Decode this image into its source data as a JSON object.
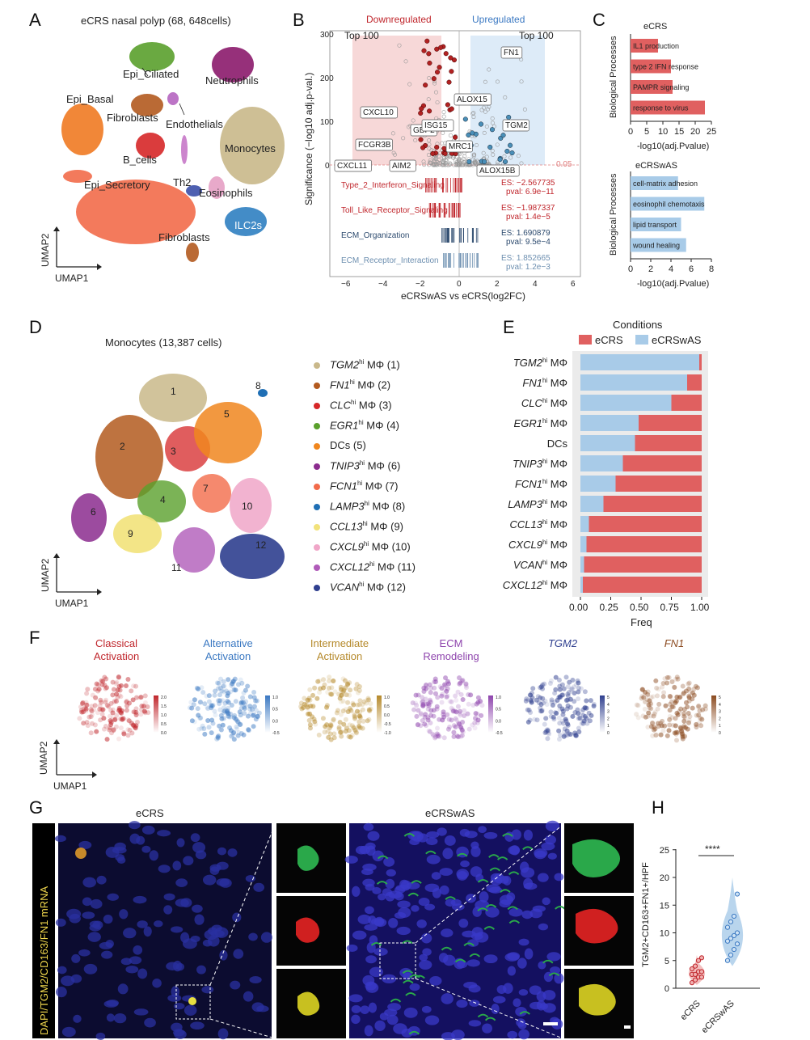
{
  "panels": [
    "A",
    "B",
    "C",
    "D",
    "E",
    "F",
    "G",
    "H"
  ],
  "A": {
    "title": "eCRS nasal polyp (68, 648cells)",
    "clusters": [
      {
        "label": "Epi_Ciliated",
        "color": "#5aa02c"
      },
      {
        "label": "Neutrophils",
        "color": "#8b1a6b"
      },
      {
        "label": "Epi_Basal",
        "color": "#f07a22"
      },
      {
        "label": "Fibroblasts",
        "color": "#b35a1f"
      },
      {
        "label": "Endothelials",
        "color": "#b565c0"
      },
      {
        "label": "Monocytes",
        "color": "#c9b88a"
      },
      {
        "label": "B_cells",
        "color": "#d62728"
      },
      {
        "label": "Epi_Secretory",
        "color": "#f26b4a"
      },
      {
        "label": "Th2",
        "color": "#c678c8"
      },
      {
        "label": "Eosinophils",
        "color": "#e6a0c4"
      },
      {
        "label": "ILC2s",
        "color": "#2f7fc1"
      },
      {
        "label": "Fibroblasts",
        "color": "#b35a1f"
      }
    ],
    "xlabel": "UMAP1",
    "ylabel": "UMAP2"
  },
  "B": {
    "xlabel": "eCRSwAS vs eCRS(log2FC)",
    "ylabel": "Significance (−log10 adj.p-val.)",
    "down_label": "Downregulated",
    "up_label": "Upregulated",
    "top_left": "Top 100",
    "top_right": "Top 100",
    "threshold": "0.05",
    "genes": [
      "FN1",
      "ALOX15",
      "GBP2",
      "CXCL10",
      "ISG15",
      "TGM2",
      "FCGR3B",
      "MRC1",
      "CXCL11",
      "AIM2",
      "ALOX15B"
    ],
    "gsea": [
      {
        "name": "Type_2_Interferon_Signaling",
        "es": "ES: −2.567735",
        "pval": "pval: 6.9e−11",
        "color": "#c0262c"
      },
      {
        "name": "Toll_Like_Receptor_Signaling",
        "es": "ES: −1.987337",
        "pval": "pval: 1.4e−5",
        "color": "#c0262c"
      },
      {
        "name": "ECM_Organization",
        "es": "ES: 1.690879",
        "pval": "pval: 9.5e−4",
        "color": "#2c4a6e"
      },
      {
        "name": "ECM_Receptor_Interaction",
        "es": "ES: 1.852665",
        "pval": "pval: 1.2e−3",
        "color": "#6d8fb0"
      }
    ]
  },
  "C": {
    "ylabel": "Biological Processes",
    "xlabel": "-log10(adj.Pvalue)",
    "top_title": "eCRS",
    "bottom_title": "eCRSwAS",
    "top_bars": [
      {
        "label": "IL1 production",
        "value": 8.5
      },
      {
        "label": "type 2 IFN response",
        "value": 12.5
      },
      {
        "label": "PAMPR signaling",
        "value": 13
      },
      {
        "label": "response to virus",
        "value": 23
      }
    ],
    "top_ticks": [
      "0",
      "5",
      "10",
      "15",
      "20",
      "25"
    ],
    "bottom_bars": [
      {
        "label": "cell-matrix adhesion",
        "value": 4.7
      },
      {
        "label": "eosinophil chemotaxis",
        "value": 7.3
      },
      {
        "label": "lipid transport",
        "value": 5
      },
      {
        "label": "wound healing",
        "value": 5.5
      }
    ],
    "bottom_ticks": [
      "0",
      "2",
      "4",
      "6",
      "8"
    ]
  },
  "D": {
    "title": "Monocytes (13,387 cells)",
    "xlabel": "UMAP1",
    "ylabel": "UMAP2",
    "legend": [
      {
        "gene": "TGM2",
        "sup": "hi",
        "suffix": " MΦ (1)",
        "color": "#c9b88a",
        "num": "1"
      },
      {
        "gene": "FN1",
        "sup": "hi",
        "suffix": " MΦ (2)",
        "color": "#b35a1f",
        "num": "2"
      },
      {
        "gene": "CLC",
        "sup": "hi",
        "suffix": " MΦ (3)",
        "color": "#d62728",
        "num": "3"
      },
      {
        "gene": "EGR1",
        "sup": "hi",
        "suffix": " MΦ (4)",
        "color": "#5aa02c",
        "num": "4"
      },
      {
        "gene": "",
        "sup": "",
        "suffix": "DCs (5)",
        "color": "#f0861e",
        "num": "5"
      },
      {
        "gene": "TNIP3",
        "sup": "hi",
        "suffix": " MΦ (6)",
        "color": "#8b2c8e",
        "num": "6"
      },
      {
        "gene": "FCN1",
        "sup": "hi",
        "suffix": " MΦ (7)",
        "color": "#f26b4a",
        "num": "7"
      },
      {
        "gene": "LAMP3",
        "sup": "hi",
        "suffix": " MΦ (8)",
        "color": "#1f6fb5",
        "num": "8"
      },
      {
        "gene": "CCL13",
        "sup": "hi",
        "suffix": " MΦ (9)",
        "color": "#f2e27a",
        "num": "9"
      },
      {
        "gene": "CXCL9",
        "sup": "hi",
        "suffix": " MΦ (10)",
        "color": "#f0a6c8",
        "num": "10"
      },
      {
        "gene": "CXCL12",
        "sup": "hi",
        "suffix": " MΦ (11)",
        "color": "#b05bb9",
        "num": "11"
      },
      {
        "gene": "VCAN",
        "sup": "hi",
        "suffix": " MΦ (12)",
        "color": "#2f3f8f",
        "num": "12"
      }
    ]
  },
  "E": {
    "legend_title": "Conditions",
    "legend": [
      {
        "name": "eCRS",
        "color": "#e06060"
      },
      {
        "name": "eCRSwAS",
        "color": "#a8cbe8"
      }
    ],
    "xlabel": "Freq",
    "ticks": [
      "0.00",
      "0.25",
      "0.50",
      "0.75",
      "1.00"
    ],
    "rows": [
      {
        "gene": "TGM2",
        "sup": "hi",
        "suffix": " MΦ",
        "ecrswas": 0.98
      },
      {
        "gene": "FN1",
        "sup": "hi",
        "suffix": " MΦ",
        "ecrswas": 0.88
      },
      {
        "gene": "CLC",
        "sup": "hi",
        "suffix": " MΦ",
        "ecrswas": 0.75
      },
      {
        "gene": "EGR1",
        "sup": "hi",
        "suffix": " MΦ",
        "ecrswas": 0.48
      },
      {
        "gene": "",
        "sup": "",
        "suffix": "DCs",
        "ecrswas": 0.45
      },
      {
        "gene": "TNIP3",
        "sup": "hi",
        "suffix": " MΦ",
        "ecrswas": 0.35
      },
      {
        "gene": "FCN1",
        "sup": "hi",
        "suffix": " MΦ",
        "ecrswas": 0.29
      },
      {
        "gene": "LAMP3",
        "sup": "hi",
        "suffix": " MΦ",
        "ecrswas": 0.19
      },
      {
        "gene": "CCL13",
        "sup": "hi",
        "suffix": " MΦ",
        "ecrswas": 0.07
      },
      {
        "gene": "CXCL9",
        "sup": "hi",
        "suffix": " MΦ",
        "ecrswas": 0.05
      },
      {
        "gene": "VCAN",
        "sup": "hi",
        "suffix": " MΦ",
        "ecrswas": 0.03
      },
      {
        "gene": "CXCL12",
        "sup": "hi",
        "suffix": " MΦ",
        "ecrswas": 0.02
      }
    ]
  },
  "F": {
    "xlabel": "UMAP1",
    "ylabel": "UMAP2",
    "maps": [
      {
        "l1": "Classical",
        "l2": "Activation",
        "color": "#c0262c",
        "ticks": [
          "2.0",
          "1.5",
          "1.0",
          "0.5",
          "0.0"
        ]
      },
      {
        "l1": "Alternative",
        "l2": "Activation",
        "color": "#3a78c2",
        "ticks": [
          "1.0",
          "0.5",
          "0.0",
          "-0.5"
        ]
      },
      {
        "l1": "Intermediate",
        "l2": "Activation",
        "color": "#b5892a",
        "ticks": [
          "1.0",
          "0.5",
          "0.0",
          "-0.5",
          "-1.0"
        ]
      },
      {
        "l1": "ECM",
        "l2": "Remodeling",
        "color": "#8e44ad",
        "ticks": [
          "1.0",
          "0.5",
          "0.0",
          "-0.5"
        ]
      },
      {
        "l1": "TGM2",
        "l2": "",
        "color": "#2f3f8f",
        "ticks": [
          "5",
          "4",
          "3",
          "2",
          "1",
          "0"
        ]
      },
      {
        "l1": "FN1",
        "l2": "",
        "color": "#8b4a1f",
        "ticks": [
          "5",
          "4",
          "3",
          "2",
          "1",
          "0"
        ]
      }
    ]
  },
  "G": {
    "left_title": "eCRS",
    "right_title": "eCRSwAS",
    "side_label": "DAPI/TGM2/CD163/FN1 mRNA"
  },
  "H": {
    "ylabel": "TGM2+CD163+FN1+/HPF",
    "yticks": [
      "0",
      "5",
      "10",
      "15",
      "20",
      "25"
    ],
    "groups": [
      "eCRS",
      "eCRSwAS"
    ],
    "sig": "****",
    "ecrs_points": [
      1,
      1.5,
      2,
      2,
      2.5,
      2.5,
      3,
      3,
      3.5,
      4,
      5,
      5.5
    ],
    "ecrswas_points": [
      5,
      6,
      7,
      8,
      8.5,
      9,
      9.5,
      10,
      11,
      12,
      13,
      17
    ]
  }
}
